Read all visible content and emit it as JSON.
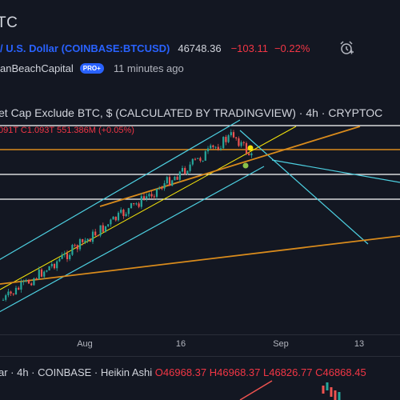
{
  "header": {
    "title": "TC",
    "symbol": "/ U.S. Dollar (COINBASE:BTCUSD)",
    "price": "46748.36",
    "change": "−103.11",
    "change_pct": "−0.22%",
    "author": "anBeachCapital",
    "badge": "PRO+",
    "time": "11 minutes ago",
    "icons": [
      "alarm-clock-icon"
    ]
  },
  "chart": {
    "title": "et Cap Exclude BTC, $ (CALCULATED BY TRADINGVIEW) · 4h · CRYPTOC",
    "ohlc": "091T  C1.093T  551.386M (+0.05%)",
    "x_labels": [
      "Aug",
      "16",
      "Sep",
      "13"
    ],
    "colors": {
      "up": "#26a69a",
      "down": "#ef5350",
      "channel": "#4dd0e1",
      "trend": "#d98b1c",
      "level": "#ffffff",
      "midline": "#f5e50a"
    }
  },
  "lower": {
    "prefix": "ar · 4h · COINBASE · Heikin Ashi",
    "o": "O46968.37",
    "h": "H46968.37",
    "l": "L46826.77",
    "c": "C46868.45"
  }
}
